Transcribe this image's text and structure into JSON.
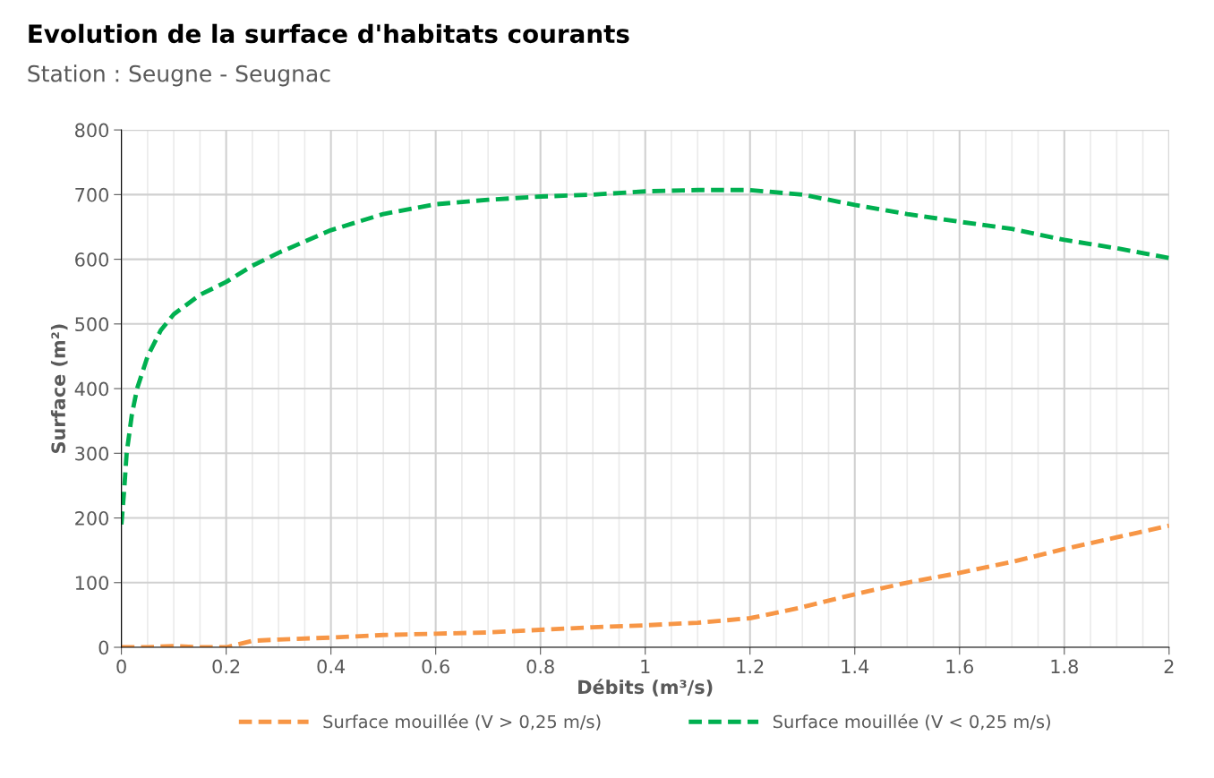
{
  "chart_data": {
    "type": "line",
    "title": "Evolution de la surface d'habitats courants",
    "subtitle": "Station : Seugne - Seugnac",
    "xlabel": "Débits (m³/s)",
    "ylabel": "Surface (m²)",
    "xlim": [
      0,
      2
    ],
    "ylim": [
      0,
      800
    ],
    "xticks": [
      0,
      {
        "value": 0.05,
        "label": null
      },
      {
        "value": 0.1,
        "label": null
      },
      {
        "value": 0.15,
        "label": null
      },
      0.2,
      {
        "value": 0.25,
        "label": null
      },
      {
        "value": 0.3,
        "label": null
      },
      {
        "value": 0.35,
        "label": null
      },
      0.4,
      {
        "value": 0.45,
        "label": null
      },
      {
        "value": 0.5,
        "label": null
      },
      {
        "value": 0.55,
        "label": null
      },
      0.6,
      {
        "value": 0.65,
        "label": null
      },
      {
        "value": 0.7,
        "label": null
      },
      {
        "value": 0.75,
        "label": null
      },
      0.8,
      {
        "value": 0.85,
        "label": null
      },
      {
        "value": 0.9,
        "label": null
      },
      {
        "value": 0.95,
        "label": null
      },
      1,
      {
        "value": 1.05,
        "label": null
      },
      {
        "value": 1.1,
        "label": null
      },
      {
        "value": 1.15,
        "label": null
      },
      1.2,
      {
        "value": 1.25,
        "label": null
      },
      {
        "value": 1.3,
        "label": null
      },
      {
        "value": 1.35,
        "label": null
      },
      1.4,
      {
        "value": 1.45,
        "label": null
      },
      {
        "value": 1.5,
        "label": null
      },
      {
        "value": 1.55,
        "label": null
      },
      1.6,
      {
        "value": 1.65,
        "label": null
      },
      {
        "value": 1.7,
        "label": null
      },
      {
        "value": 1.75,
        "label": null
      },
      1.8,
      {
        "value": 1.85,
        "label": null
      },
      {
        "value": 1.9,
        "label": null
      },
      {
        "value": 1.95,
        "label": null
      },
      2
    ],
    "yticks": [
      0,
      100,
      200,
      300,
      400,
      500,
      600,
      700,
      800
    ],
    "grid": true,
    "legend": "bottom",
    "marker": "none",
    "line_style": "dashed",
    "series": [
      {
        "name": "Surface mouillée (V > 0,25 m/s)",
        "color": "#f79646",
        "x": [
          0,
          0.05,
          0.1,
          0.15,
          0.2,
          0.25,
          0.3,
          0.4,
          0.5,
          0.6,
          0.7,
          0.8,
          0.9,
          1.0,
          1.1,
          1.2,
          1.3,
          1.4,
          1.5,
          1.6,
          1.7,
          1.8,
          1.9,
          2.0
        ],
        "values": [
          0,
          0,
          2,
          0,
          0,
          10,
          12,
          15,
          19,
          21,
          23,
          27,
          31,
          34,
          38,
          45,
          62,
          82,
          100,
          115,
          132,
          152,
          170,
          188
        ]
      },
      {
        "name": "Surface mouillée (V < 0,25 m/s)",
        "color": "#00b050",
        "x": [
          0,
          0.005,
          0.01,
          0.02,
          0.03,
          0.05,
          0.075,
          0.1,
          0.15,
          0.2,
          0.25,
          0.3,
          0.4,
          0.5,
          0.6,
          0.7,
          0.8,
          0.9,
          1.0,
          1.1,
          1.2,
          1.3,
          1.4,
          1.5,
          1.6,
          1.7,
          1.8,
          1.9,
          2.0
        ],
        "values": [
          190,
          240,
          300,
          360,
          400,
          450,
          490,
          515,
          545,
          565,
          590,
          610,
          645,
          670,
          685,
          692,
          697,
          700,
          705,
          707,
          707,
          700,
          684,
          670,
          658,
          647,
          630,
          617,
          602
        ]
      }
    ]
  }
}
